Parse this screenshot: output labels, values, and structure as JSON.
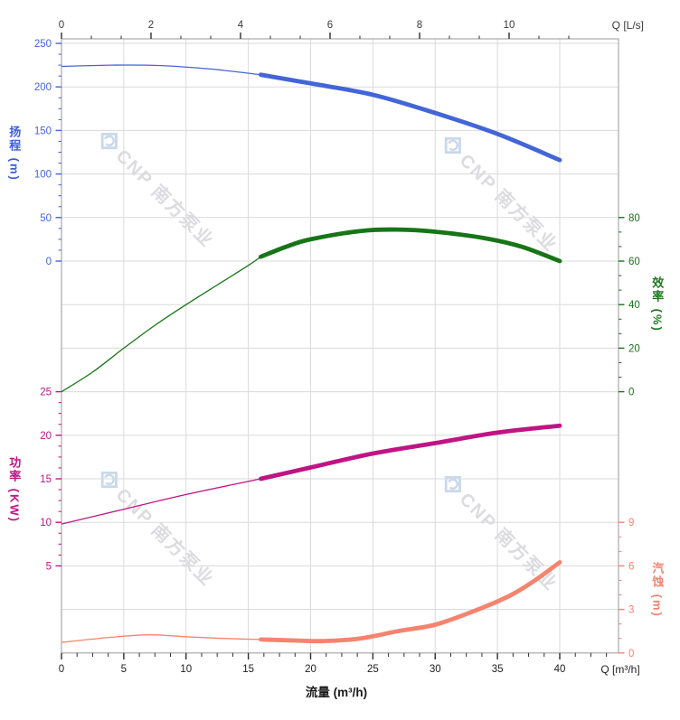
{
  "watermark": {
    "text": "CNP 南方泵业",
    "logo_icon": "cnp-diamond-e-logo",
    "logo_color": "#c9d9ea",
    "text_color": "#dcdce0"
  },
  "chart_data": {
    "type": "line",
    "title": "",
    "grid": true,
    "duty_range_note": "curves drawn thin below 16 m³/h and thick from 16 to 40 m³/h",
    "x_axes": {
      "top": {
        "label": "Q [L/s]",
        "unit": "L/s",
        "ticks": [
          0,
          2,
          4,
          6,
          8,
          10
        ],
        "minor_step": 0.6667
      },
      "bottom": {
        "label": "Q [m³/h]",
        "unit": "m³/h",
        "title": "流量 (m³/h)",
        "ticks": [
          0,
          5,
          10,
          15,
          20,
          25,
          30,
          35,
          40
        ],
        "minor_step": 1.25
      }
    },
    "series": [
      {
        "id": "head",
        "name": "扬程",
        "axis_title": "扬程 (m)",
        "unit": "m",
        "color": "#4365d9",
        "side": "left",
        "ticks": [
          250,
          200,
          150,
          100,
          50,
          0
        ],
        "minor_step": 12.5,
        "axis_range": [
          0,
          250
        ],
        "duty_start": 16,
        "points": [
          [
            0,
            223.5
          ],
          [
            4,
            225
          ],
          [
            8,
            224.5
          ],
          [
            12,
            220.5
          ],
          [
            16,
            214
          ],
          [
            20,
            204
          ],
          [
            25,
            191
          ],
          [
            30,
            170
          ],
          [
            35,
            146
          ],
          [
            40,
            116
          ]
        ]
      },
      {
        "id": "efficiency",
        "name": "效率",
        "axis_title": "效率 (%)",
        "unit": "%",
        "color": "#177517",
        "side": "right",
        "ticks": [
          80,
          60,
          40,
          20,
          0
        ],
        "minor_step": 6.6667,
        "axis_range": [
          0,
          80
        ],
        "duty_start": 16,
        "points": [
          [
            0,
            0
          ],
          [
            2.5,
            9
          ],
          [
            5,
            20
          ],
          [
            7.5,
            30.5
          ],
          [
            10,
            40
          ],
          [
            12.5,
            49
          ],
          [
            15,
            58
          ],
          [
            16,
            62
          ],
          [
            18,
            66.5
          ],
          [
            20,
            70
          ],
          [
            24,
            73.8
          ],
          [
            27,
            74.5
          ],
          [
            30,
            73.5
          ],
          [
            34,
            70.5
          ],
          [
            37,
            66.5
          ],
          [
            40,
            60
          ]
        ]
      },
      {
        "id": "power",
        "name": "功率",
        "axis_title": "功率 (KW)",
        "unit": "KW",
        "color": "#c01484",
        "side": "left",
        "ticks": [
          25,
          20,
          15,
          10,
          5
        ],
        "minor_step": 1.25,
        "axis_range": [
          5,
          25
        ],
        "duty_start": 16,
        "points": [
          [
            0,
            9.8
          ],
          [
            5,
            11.5
          ],
          [
            10,
            13.2
          ],
          [
            16,
            15.0
          ],
          [
            20,
            16.3
          ],
          [
            25,
            17.9
          ],
          [
            30,
            19.1
          ],
          [
            35,
            20.3
          ],
          [
            40,
            21.1
          ]
        ]
      },
      {
        "id": "npsh",
        "name": "汽蚀",
        "axis_title": "汽蚀 (m)",
        "unit": "m",
        "color": "#f5846f",
        "side": "right",
        "ticks": [
          9,
          6,
          3,
          0
        ],
        "minor_step": 1,
        "axis_range": [
          0,
          9
        ],
        "duty_start": 16,
        "points": [
          [
            0,
            0.73
          ],
          [
            4,
            1.08
          ],
          [
            7,
            1.25
          ],
          [
            10,
            1.12
          ],
          [
            13,
            1.0
          ],
          [
            16,
            0.93
          ],
          [
            19,
            0.85
          ],
          [
            21,
            0.82
          ],
          [
            24,
            1.0
          ],
          [
            27,
            1.5
          ],
          [
            30,
            1.95
          ],
          [
            33,
            2.85
          ],
          [
            36,
            3.95
          ],
          [
            38,
            5.0
          ],
          [
            40,
            6.25
          ]
        ]
      }
    ]
  }
}
